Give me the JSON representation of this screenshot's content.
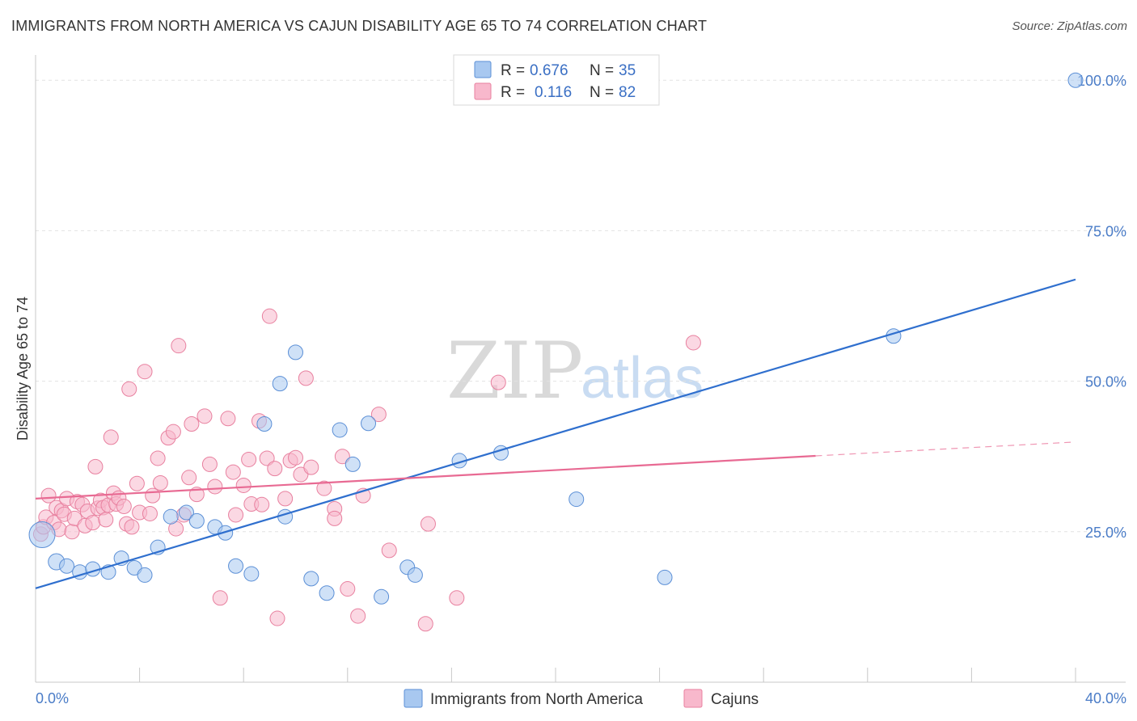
{
  "title": "IMMIGRANTS FROM NORTH AMERICA VS CAJUN DISABILITY AGE 65 TO 74 CORRELATION CHART",
  "source": "Source: ZipAtlas.com",
  "watermark": {
    "zip": "ZIP",
    "atlas": "atlas"
  },
  "legend": {
    "rows": [
      {
        "r_label": "R =",
        "r_value": "0.676",
        "n_label": "N =",
        "n_value": "35",
        "color": "#a8c8f0"
      },
      {
        "r_label": "R =",
        "r_value": "0.116",
        "n_label": "N =",
        "n_value": "82",
        "color": "#f8b8cc"
      }
    ]
  },
  "bottom_legend": [
    {
      "label": "Immigrants from North America",
      "color": "#a8c8f0"
    },
    {
      "label": "Cajuns",
      "color": "#f8b8cc"
    }
  ],
  "colors": {
    "blue_fill": "#a8c8f0",
    "blue_stroke": "#5b8fd6",
    "blue_line": "#2f6fce",
    "pink_fill": "#f8b8cc",
    "pink_stroke": "#e8809f",
    "pink_line": "#e86a93",
    "axis_text": "#4a7cc7"
  },
  "chart_data": {
    "type": "scatter",
    "title": "IMMIGRANTS FROM NORTH AMERICA VS CAJUN DISABILITY AGE 65 TO 74 CORRELATION CHART",
    "xlabel": "",
    "ylabel": "Disability Age 65 to 74",
    "xlim": [
      0,
      40
    ],
    "ylim": [
      0,
      105
    ],
    "x_tick_labels": [
      {
        "value": 0,
        "label": "0.0%"
      },
      {
        "value": 40,
        "label": "40.0%"
      }
    ],
    "y_tick_labels": [
      {
        "value": 25,
        "label": "25.0%"
      },
      {
        "value": 50,
        "label": "50.0%"
      },
      {
        "value": 75,
        "label": "75.0%"
      },
      {
        "value": 100,
        "label": "100.0%"
      }
    ],
    "grid": true,
    "series": [
      {
        "name": "Immigrants from North America",
        "r": 0.676,
        "n": 35,
        "trend": {
          "x0": 0,
          "y0": 15.6,
          "x1": 40,
          "y1": 66.9
        },
        "points": [
          [
            0.25,
            24.5,
            16
          ],
          [
            0.8,
            20.0,
            10
          ],
          [
            1.2,
            19.3,
            9
          ],
          [
            1.7,
            18.3,
            9
          ],
          [
            2.2,
            18.8,
            9
          ],
          [
            2.8,
            18.3,
            9
          ],
          [
            3.3,
            20.6,
            9
          ],
          [
            3.8,
            19.0,
            9
          ],
          [
            4.2,
            17.8,
            9
          ],
          [
            4.7,
            22.4,
            9
          ],
          [
            5.2,
            27.5,
            9
          ],
          [
            5.8,
            28.2,
            9
          ],
          [
            6.2,
            26.8,
            9
          ],
          [
            6.9,
            25.8,
            9
          ],
          [
            7.3,
            24.8,
            9
          ],
          [
            7.7,
            19.3,
            9
          ],
          [
            8.3,
            18.0,
            9
          ],
          [
            8.8,
            42.9,
            9
          ],
          [
            9.4,
            49.6,
            9
          ],
          [
            9.6,
            27.5,
            9
          ],
          [
            10.0,
            54.8,
            9
          ],
          [
            10.6,
            17.2,
            9
          ],
          [
            11.2,
            14.8,
            9
          ],
          [
            11.7,
            41.9,
            9
          ],
          [
            12.2,
            36.2,
            9
          ],
          [
            12.8,
            43.0,
            9
          ],
          [
            13.3,
            14.2,
            9
          ],
          [
            14.3,
            19.1,
            9
          ],
          [
            14.6,
            17.8,
            9
          ],
          [
            16.3,
            36.8,
            9
          ],
          [
            17.9,
            38.1,
            9
          ],
          [
            20.8,
            30.4,
            9
          ],
          [
            24.2,
            17.4,
            9
          ],
          [
            33.0,
            57.5,
            9
          ],
          [
            40.0,
            100.0,
            9
          ]
        ]
      },
      {
        "name": "Cajuns",
        "r": 0.116,
        "n": 82,
        "trend": {
          "x0": 0,
          "y0": 30.5,
          "x1": 30.0,
          "y1": 37.6
        },
        "trend_dashed": {
          "x0": 30.0,
          "y0": 37.6,
          "x1": 40,
          "y1": 39.9
        },
        "points": [
          [
            0.2,
            24.6,
            9
          ],
          [
            0.3,
            25.8,
            9
          ],
          [
            0.4,
            27.4,
            9
          ],
          [
            0.5,
            31.0,
            9
          ],
          [
            0.7,
            26.5,
            9
          ],
          [
            0.8,
            29.0,
            9
          ],
          [
            0.9,
            25.4,
            9
          ],
          [
            1.0,
            28.5,
            9
          ],
          [
            1.1,
            27.9,
            9
          ],
          [
            1.2,
            30.5,
            9
          ],
          [
            1.4,
            25.0,
            9
          ],
          [
            1.5,
            27.2,
            9
          ],
          [
            1.6,
            30.0,
            9
          ],
          [
            1.8,
            29.5,
            9
          ],
          [
            1.9,
            26.0,
            9
          ],
          [
            2.0,
            28.4,
            9
          ],
          [
            2.2,
            26.5,
            9
          ],
          [
            2.3,
            35.8,
            9
          ],
          [
            2.4,
            28.9,
            9
          ],
          [
            2.5,
            30.2,
            9
          ],
          [
            2.6,
            29.0,
            9
          ],
          [
            2.7,
            27.0,
            9
          ],
          [
            2.8,
            29.4,
            9
          ],
          [
            2.9,
            40.7,
            9
          ],
          [
            3.0,
            31.4,
            9
          ],
          [
            3.1,
            29.6,
            9
          ],
          [
            3.2,
            30.6,
            9
          ],
          [
            3.4,
            29.2,
            9
          ],
          [
            3.5,
            26.3,
            9
          ],
          [
            3.6,
            48.7,
            9
          ],
          [
            3.7,
            25.8,
            9
          ],
          [
            3.9,
            33.0,
            9
          ],
          [
            4.0,
            28.2,
            9
          ],
          [
            4.2,
            51.6,
            9
          ],
          [
            4.4,
            28.0,
            9
          ],
          [
            4.5,
            31.0,
            9
          ],
          [
            4.7,
            37.2,
            9
          ],
          [
            4.8,
            33.1,
            9
          ],
          [
            5.1,
            40.6,
            9
          ],
          [
            5.3,
            41.6,
            9
          ],
          [
            5.4,
            25.5,
            9
          ],
          [
            5.5,
            55.9,
            9
          ],
          [
            5.7,
            27.8,
            9
          ],
          [
            5.9,
            34.0,
            9
          ],
          [
            6.0,
            42.9,
            9
          ],
          [
            6.2,
            31.2,
            9
          ],
          [
            6.5,
            44.2,
            9
          ],
          [
            6.7,
            36.2,
            9
          ],
          [
            6.9,
            32.5,
            9
          ],
          [
            7.1,
            14.0,
            9
          ],
          [
            7.4,
            43.8,
            9
          ],
          [
            7.6,
            34.9,
            9
          ],
          [
            7.7,
            27.8,
            9
          ],
          [
            8.0,
            32.7,
            9
          ],
          [
            8.2,
            37.0,
            9
          ],
          [
            8.3,
            29.6,
            9
          ],
          [
            8.6,
            43.4,
            9
          ],
          [
            8.7,
            29.5,
            9
          ],
          [
            8.9,
            37.2,
            9
          ],
          [
            9.0,
            60.8,
            9
          ],
          [
            9.2,
            35.5,
            9
          ],
          [
            9.3,
            10.6,
            9
          ],
          [
            9.6,
            30.5,
            9
          ],
          [
            9.8,
            36.8,
            9
          ],
          [
            10.0,
            37.3,
            9
          ],
          [
            10.2,
            34.5,
            9
          ],
          [
            10.4,
            50.5,
            9
          ],
          [
            10.6,
            35.7,
            9
          ],
          [
            11.1,
            32.2,
            9
          ],
          [
            11.5,
            28.8,
            9
          ],
          [
            11.5,
            27.2,
            9
          ],
          [
            11.8,
            37.5,
            9
          ],
          [
            12.0,
            15.5,
            9
          ],
          [
            12.4,
            11.0,
            9
          ],
          [
            12.6,
            31.0,
            9
          ],
          [
            13.2,
            44.5,
            9
          ],
          [
            13.6,
            21.9,
            9
          ],
          [
            15.0,
            9.7,
            9
          ],
          [
            15.1,
            26.3,
            9
          ],
          [
            16.2,
            14.0,
            9
          ],
          [
            17.8,
            49.8,
            9
          ],
          [
            25.3,
            56.4,
            9
          ]
        ]
      }
    ]
  }
}
